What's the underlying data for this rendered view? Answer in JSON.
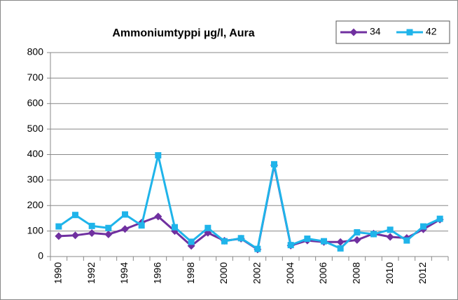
{
  "chart_data": {
    "type": "line",
    "title": "Ammoniumtyppi µg/l, Aura",
    "categories": [
      "1990",
      null,
      "1992",
      null,
      "1994",
      null,
      "1996",
      null,
      "1998",
      null,
      "2000",
      null,
      "2002",
      null,
      "2004",
      null,
      "2006",
      null,
      "2008",
      null,
      "2010",
      null,
      "2012",
      null
    ],
    "series": [
      {
        "name": "34",
        "color": "#7030a0",
        "marker": "diamond",
        "values": [
          80,
          83,
          92,
          87,
          108,
          133,
          157,
          100,
          42,
          93,
          62,
          70,
          28,
          358,
          43,
          63,
          57,
          57,
          65,
          90,
          77,
          73,
          107,
          145
        ]
      },
      {
        "name": "42",
        "color": "#1fb4ea",
        "marker": "square",
        "values": [
          118,
          163,
          120,
          112,
          165,
          122,
          397,
          115,
          58,
          112,
          60,
          72,
          30,
          362,
          45,
          70,
          60,
          32,
          95,
          88,
          105,
          63,
          118,
          148
        ]
      }
    ],
    "ylim": [
      0,
      800
    ],
    "yticks": [
      0,
      100,
      200,
      300,
      400,
      500,
      600,
      700,
      800
    ],
    "grid": true,
    "legend": "top-right"
  }
}
